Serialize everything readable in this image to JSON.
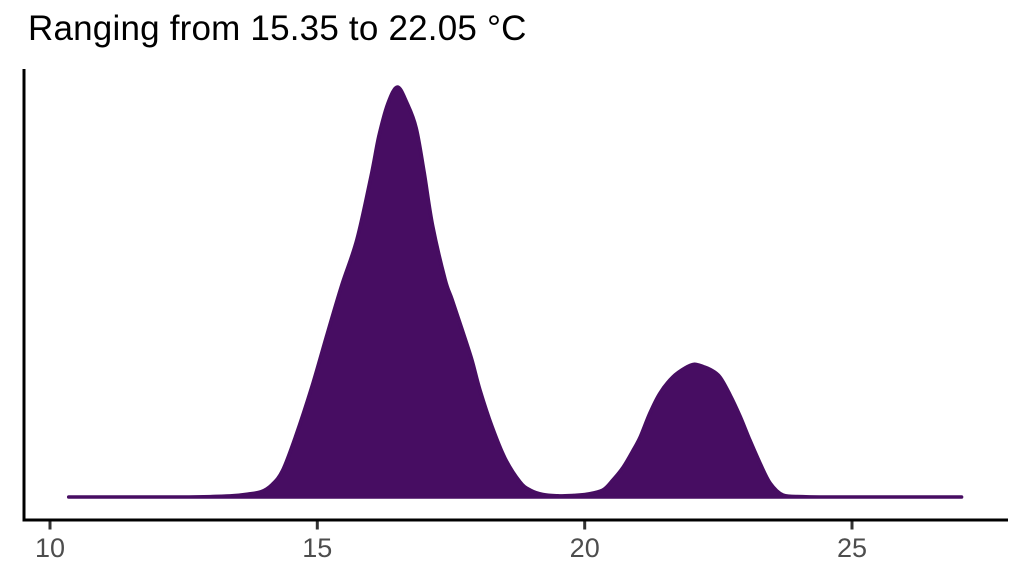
{
  "title": "Ranging from 15.35 to 22.05 °C",
  "data_range": {
    "min": "15.35",
    "max": "22.05",
    "units": "°C"
  },
  "colors": {
    "fill": "#470D62",
    "stroke": "#470D62",
    "axis": "#000000",
    "tick": "#333333",
    "tick_label": "#4D4D4D",
    "title": "#000000",
    "background": "#FFFFFF"
  },
  "x_axis": {
    "tick_labels": [
      "10",
      "15",
      "20",
      "25"
    ]
  },
  "chart_data": {
    "type": "area",
    "subtype": "density",
    "title": "Ranging from 15.35 to 22.05 °C",
    "xlabel": "",
    "ylabel": "",
    "grid": false,
    "legend": false,
    "x_ticks": [
      10,
      15,
      20,
      25
    ],
    "xlim": [
      9.5,
      27.9
    ],
    "ylim": [
      0,
      1.06
    ],
    "y_units": "normalized density (main peak = 1, y axis unlabeled)",
    "curve_x_range": [
      10.35,
      27.05
    ],
    "peaks": [
      {
        "x": 16.5,
        "density": 1.0
      },
      {
        "x": 22.05,
        "density": 0.324
      }
    ],
    "valley": {
      "x": 19.7,
      "density": 0.003
    },
    "x": [
      10.35,
      11.2,
      12.0,
      12.6,
      13.0,
      13.4,
      13.7,
      13.95,
      14.15,
      14.35,
      14.6,
      14.9,
      15.18,
      15.46,
      15.74,
      16.0,
      16.15,
      16.32,
      16.5,
      16.68,
      16.85,
      17.0,
      17.16,
      17.39,
      17.52,
      17.71,
      17.89,
      18.04,
      18.27,
      18.51,
      18.79,
      18.98,
      19.22,
      19.5,
      19.8,
      20.05,
      20.34,
      20.53,
      20.72,
      20.91,
      21.04,
      21.22,
      21.41,
      21.65,
      21.88,
      22.05,
      22.22,
      22.35,
      22.53,
      22.72,
      22.91,
      23.09,
      23.28,
      23.47,
      23.71,
      24.08,
      24.5,
      25.0,
      25.6,
      26.3,
      27.05
    ],
    "density": [
      0,
      0,
      0,
      0,
      0.001,
      0.003,
      0.007,
      0.013,
      0.03,
      0.065,
      0.15,
      0.27,
      0.396,
      0.518,
      0.628,
      0.78,
      0.88,
      0.96,
      1.0,
      0.96,
      0.9,
      0.79,
      0.66,
      0.531,
      0.482,
      0.408,
      0.335,
      0.262,
      0.171,
      0.095,
      0.037,
      0.017,
      0.006,
      0.003,
      0.004,
      0.007,
      0.017,
      0.042,
      0.073,
      0.115,
      0.147,
      0.205,
      0.254,
      0.293,
      0.315,
      0.324,
      0.318,
      0.311,
      0.293,
      0.249,
      0.196,
      0.139,
      0.083,
      0.034,
      0.005,
      0.001,
      0,
      0,
      0,
      0,
      0
    ]
  }
}
